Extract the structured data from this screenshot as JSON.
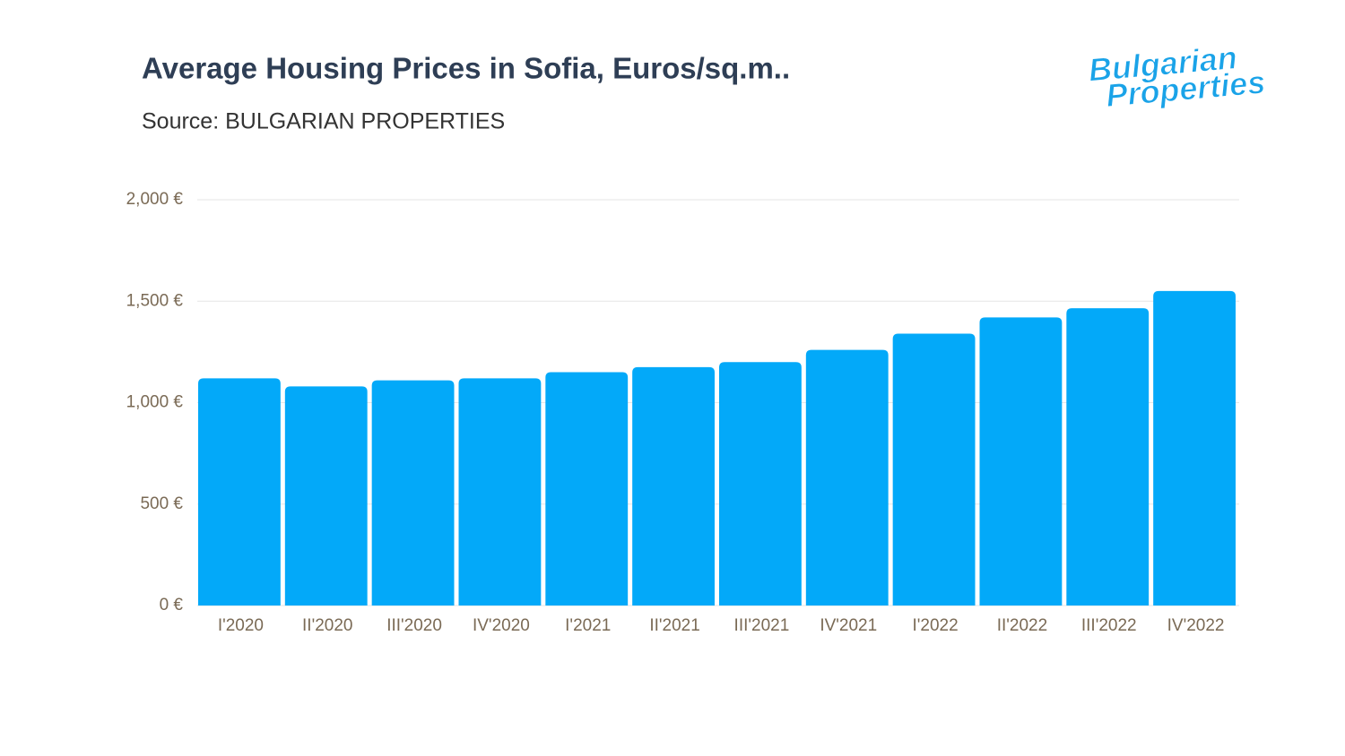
{
  "chart_data": {
    "type": "bar",
    "title": "Average Housing Prices in Sofia, Euros/sq.m..",
    "subtitle": "Source: BULGARIAN PROPERTIES",
    "logo": [
      "Bulgarian",
      "Properties"
    ],
    "categories": [
      "I'2020",
      "II'2020",
      "III'2020",
      "IV'2020",
      "I'2021",
      "II'2021",
      "III'2021",
      "IV'2021",
      "I'2022",
      "II'2022",
      "III'2022",
      "IV'2022"
    ],
    "values": [
      1120,
      1080,
      1110,
      1120,
      1150,
      1175,
      1200,
      1260,
      1340,
      1420,
      1465,
      1550
    ],
    "color": "#03a9f9",
    "ylim": [
      0,
      2000
    ],
    "yticks": [
      {
        "value": 0,
        "label": "0 €"
      },
      {
        "value": 500,
        "label": "500 €"
      },
      {
        "value": 1000,
        "label": "1,000 €"
      },
      {
        "value": 1500,
        "label": "1,500 €"
      },
      {
        "value": 2000,
        "label": "2,000 €"
      }
    ],
    "grid": true
  }
}
